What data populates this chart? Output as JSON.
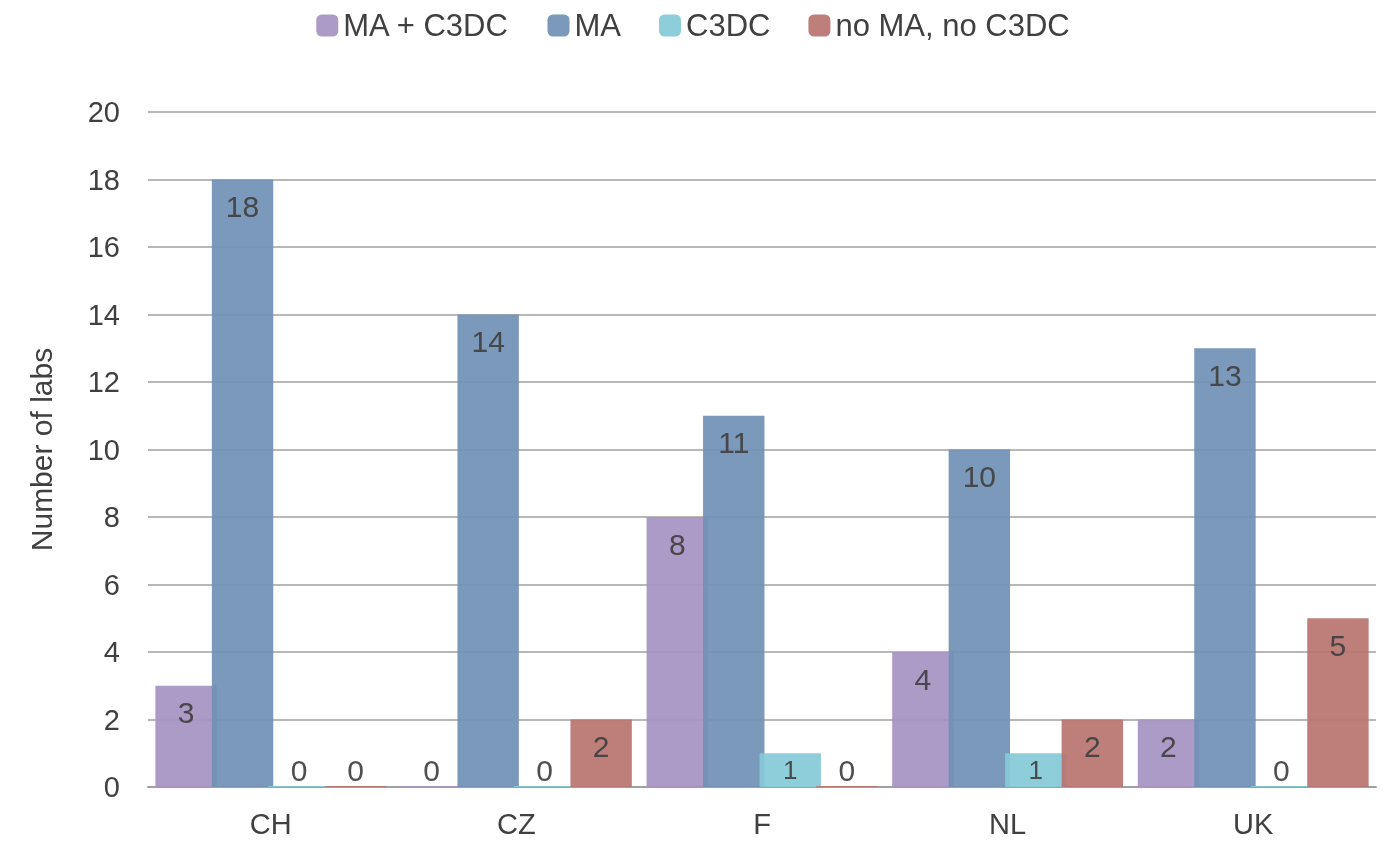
{
  "chart_data": {
    "type": "bar",
    "ylabel": "Number of labs",
    "categories": [
      "CH",
      "CZ",
      "F",
      "NL",
      "UK"
    ],
    "series": [
      {
        "name": "MA + C3DC",
        "color": "#a592c2",
        "values": [
          3,
          0,
          8,
          4,
          2
        ]
      },
      {
        "name": "MA",
        "color": "#7090b5",
        "values": [
          18,
          14,
          11,
          10,
          13
        ]
      },
      {
        "name": "C3DC",
        "color": "#84cad8",
        "values": [
          0,
          0,
          1,
          1,
          0
        ]
      },
      {
        "name": "no MA, no C3DC",
        "color": "#b97470",
        "values": [
          0,
          2,
          0,
          2,
          5
        ]
      }
    ],
    "ylim": [
      0,
      20
    ],
    "yticks": [
      0,
      2,
      4,
      6,
      8,
      10,
      12,
      14,
      16,
      18,
      20
    ],
    "grid": "y",
    "legend": "top",
    "data_labels": true
  }
}
